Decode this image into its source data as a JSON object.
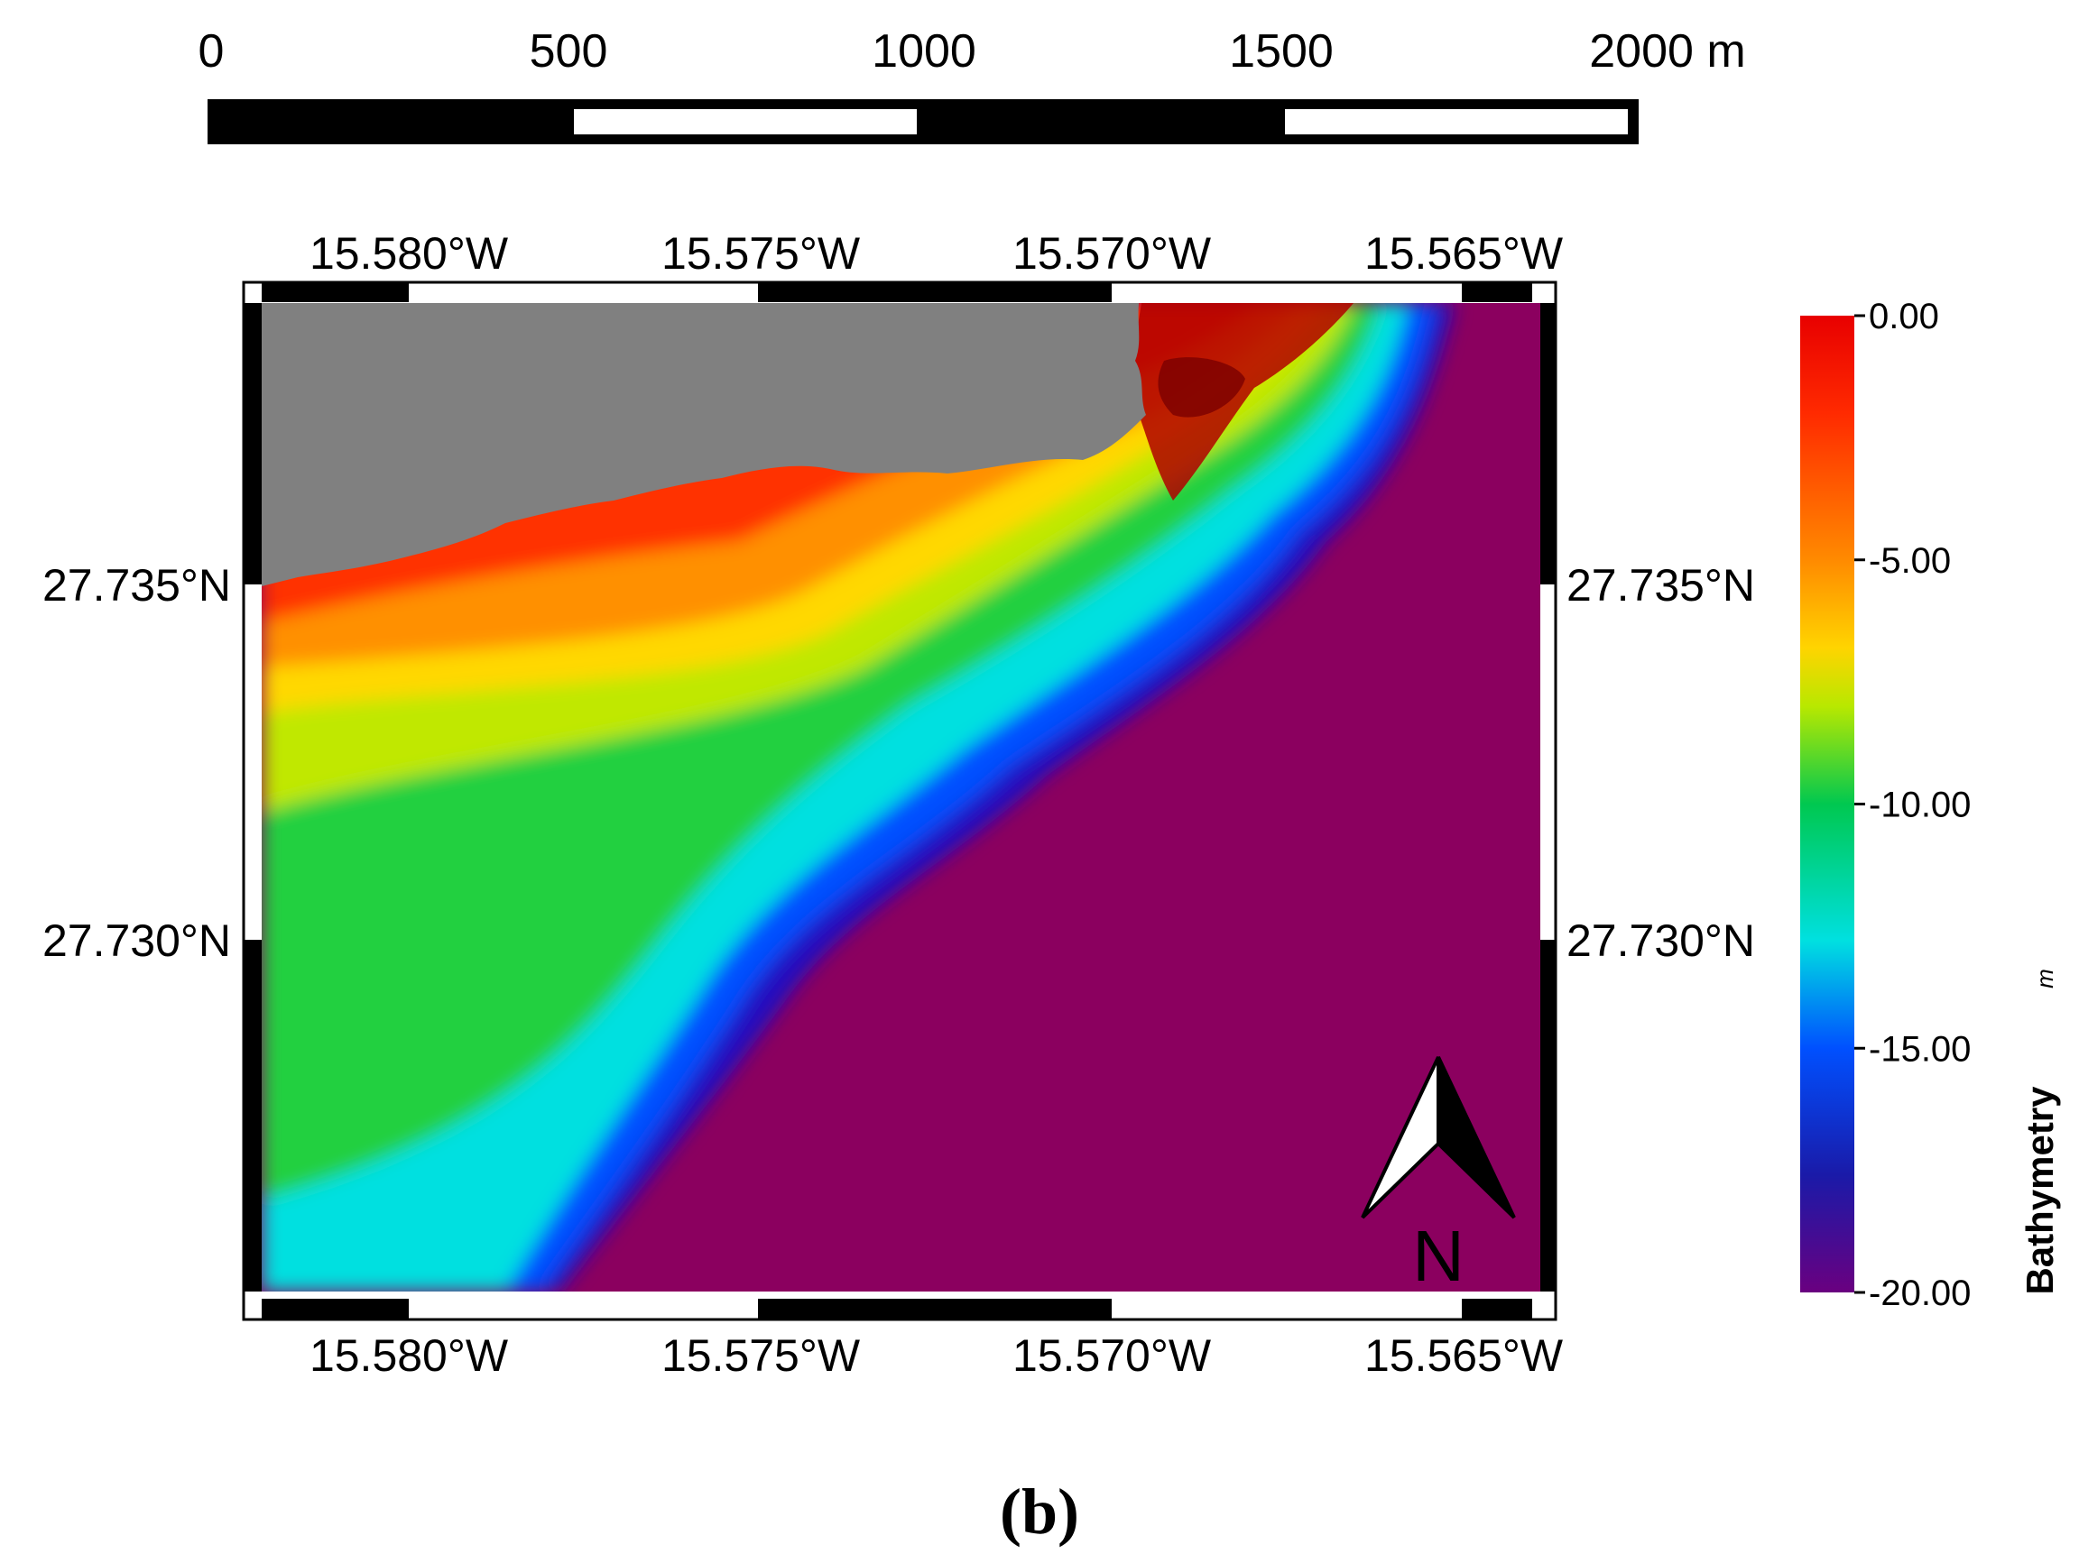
{
  "scale_bar": {
    "labels": [
      "0",
      "500",
      "1000",
      "1500",
      "2000 m"
    ]
  },
  "map": {
    "top_lon_labels": [
      "15.580°W",
      "15.575°W",
      "15.570°W",
      "15.565°W"
    ],
    "bottom_lon_labels": [
      "15.580°W",
      "15.575°W",
      "15.570°W",
      "15.565°W"
    ],
    "left_lat_labels": [
      "27.735°N",
      "27.730°N"
    ],
    "right_lat_labels": [
      "27.735°N",
      "27.730°N"
    ],
    "land_color": "#808080",
    "deep_color": "#8b005f"
  },
  "legend": {
    "title": "Bathymetry",
    "unit": "m",
    "ticks": [
      "0.00",
      "-5.00",
      "-10.00",
      "-15.00",
      "-20.00"
    ],
    "range": [
      -20,
      0
    ],
    "colors": [
      "#6a0080",
      "#1a1aa8",
      "#0060ff",
      "#00e5e5",
      "#00c850",
      "#b8e800",
      "#ffd400",
      "#ff8a00",
      "#ff1a00",
      "#e80000"
    ]
  },
  "north_arrow": {
    "label": "N"
  },
  "panel_label": "(b)"
}
